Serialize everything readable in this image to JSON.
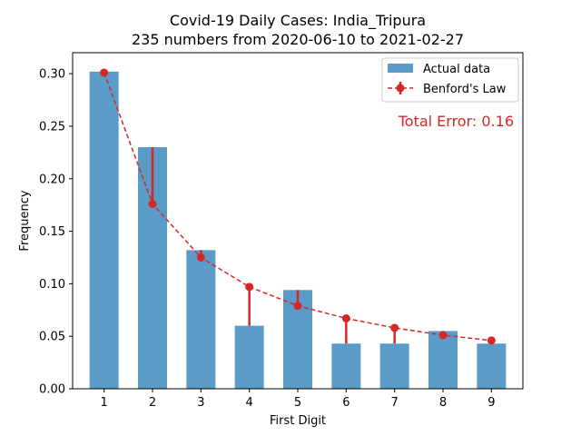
{
  "chart_data": {
    "type": "bar",
    "title": "Covid-19 Daily Cases: India_Tripura",
    "subtitle": "235 numbers from 2020-06-10 to 2021-02-27",
    "xlabel": "First Digit",
    "ylabel": "Frequency",
    "categories": [
      "1",
      "2",
      "3",
      "4",
      "5",
      "6",
      "7",
      "8",
      "9"
    ],
    "ylim": [
      0,
      0.32
    ],
    "yticks": [
      "0.00",
      "0.05",
      "0.10",
      "0.15",
      "0.20",
      "0.25",
      "0.30"
    ],
    "grid": false,
    "legend_position": "top-right",
    "series": [
      {
        "name": "Actual data",
        "type": "bar",
        "color": "#5b9bc8",
        "values": [
          0.302,
          0.23,
          0.132,
          0.06,
          0.094,
          0.043,
          0.043,
          0.055,
          0.043
        ]
      },
      {
        "name": "Benford's Law",
        "type": "line",
        "color": "#d62728",
        "values": [
          0.301,
          0.176,
          0.125,
          0.097,
          0.079,
          0.067,
          0.058,
          0.051,
          0.046
        ]
      }
    ],
    "annotation": "Total Error: 0.16"
  }
}
